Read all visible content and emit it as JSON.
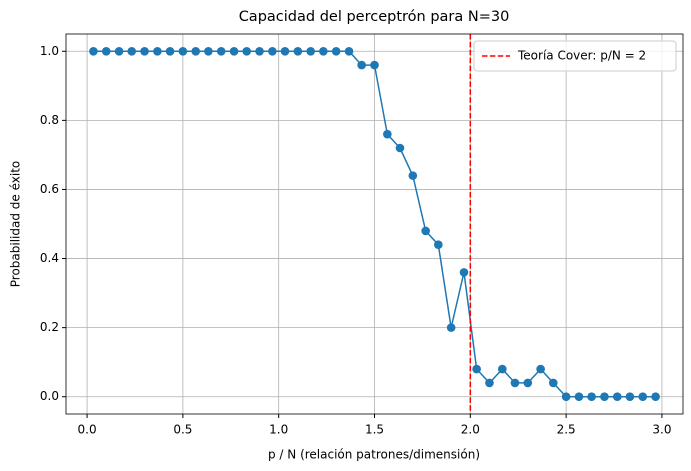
{
  "chart_data": {
    "type": "line",
    "title": "Capacidad del perceptrón para N=30",
    "xlabel": "p / N (relación patrones/dimensión)",
    "ylabel": "Probabilidad de éxito",
    "x": [
      0.033,
      0.1,
      0.167,
      0.233,
      0.3,
      0.367,
      0.433,
      0.5,
      0.567,
      0.633,
      0.7,
      0.767,
      0.833,
      0.9,
      0.967,
      1.033,
      1.1,
      1.167,
      1.233,
      1.3,
      1.367,
      1.433,
      1.5,
      1.567,
      1.633,
      1.7,
      1.767,
      1.833,
      1.9,
      1.967,
      2.033,
      2.1,
      2.167,
      2.233,
      2.3,
      2.367,
      2.433,
      2.5,
      2.567,
      2.633,
      2.7,
      2.767,
      2.833,
      2.9,
      2.967
    ],
    "series": [
      {
        "color": "#1f77b4",
        "marker": "o",
        "values": [
          1,
          1,
          1,
          1,
          1,
          1,
          1,
          1,
          1,
          1,
          1,
          1,
          1,
          1,
          1,
          1,
          1,
          1,
          1,
          1,
          1,
          0.96,
          0.96,
          0.76,
          0.72,
          0.64,
          0.48,
          0.44,
          0.2,
          0.36,
          0.08,
          0.04,
          0.08,
          0.04,
          0.04,
          0.08,
          0.04,
          0,
          0,
          0,
          0,
          0,
          0,
          0,
          0
        ]
      }
    ],
    "vlines": [
      {
        "x": 2,
        "color": "#ff0000",
        "style": "dashed",
        "label": "Teoría Cover: p/N = 2"
      }
    ],
    "legend": "upper right",
    "grid": true,
    "xlim": [
      -0.11,
      3.11
    ],
    "ylim": [
      -0.05,
      1.05
    ],
    "xticks": [
      {
        "value": 0,
        "label": "0.0"
      },
      0.5,
      {
        "value": 1,
        "label": "1.0"
      },
      1.5,
      {
        "value": 2,
        "label": "2.0"
      },
      2.5,
      {
        "value": 3,
        "label": "3.0"
      }
    ],
    "yticks": [
      {
        "value": 0,
        "label": "0.0"
      },
      0.2,
      0.4,
      0.6,
      0.8,
      {
        "value": 1,
        "label": "1.0"
      }
    ]
  }
}
